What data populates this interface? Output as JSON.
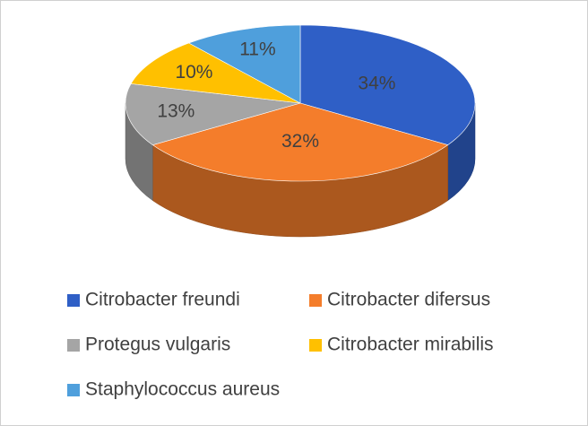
{
  "chart_data": {
    "type": "pie",
    "categories": [
      "Citrobacter freundi",
      "Citrobacter difersus",
      "Protegus vulgaris",
      "Citrobacter mirabilis",
      "Staphylococcus aureus"
    ],
    "values": [
      34,
      32,
      13,
      10,
      11
    ],
    "value_labels": [
      "34%",
      "32%",
      "13%",
      "10%",
      "11%"
    ],
    "colors": [
      "#2f5fc6",
      "#f47d2b",
      "#a5a5a5",
      "#ffc000",
      "#4f9fdc"
    ],
    "legend": "bottom"
  }
}
